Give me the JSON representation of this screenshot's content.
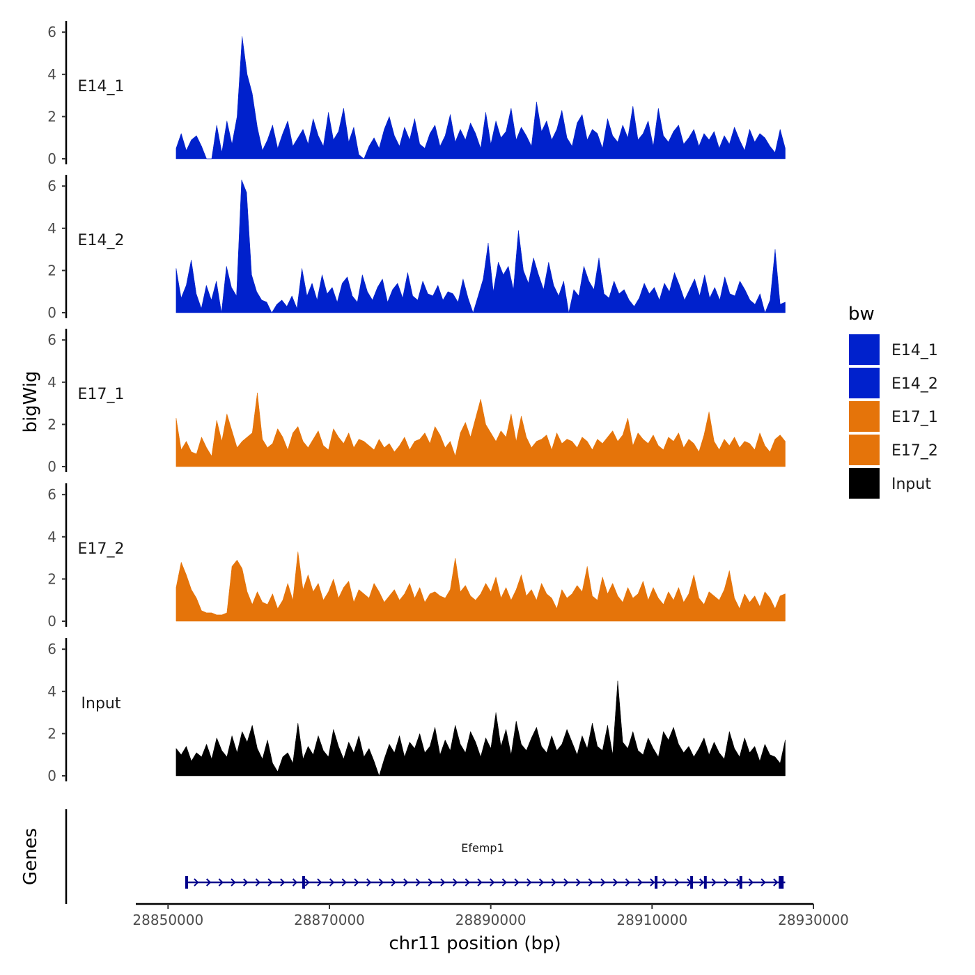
{
  "chart_data": {
    "type": "area",
    "title": "",
    "ylabel": "bigWig",
    "xlabel": "chr11 position (bp)",
    "xlim": [
      28846000,
      28930000
    ],
    "ylim": [
      0,
      6.6
    ],
    "xticks": [
      28850000,
      28870000,
      28890000,
      28910000,
      28930000
    ],
    "xtick_labels": [
      "28850000",
      "28870000",
      "28890000",
      "28910000",
      "28930000"
    ],
    "yticks": [
      0,
      2,
      4,
      6
    ],
    "ytick_labels": [
      "0",
      "2",
      "4",
      "6"
    ],
    "data_range": [
      28851000,
      28926500
    ],
    "series": [
      {
        "name": "E14_1",
        "color": "#0021CC",
        "values": [
          0.5,
          1.2,
          0.4,
          0.9,
          1.1,
          0.6,
          0.0,
          0.0,
          1.6,
          0.3,
          1.8,
          0.7,
          2.0,
          5.8,
          4.0,
          3.1,
          1.5,
          0.4,
          0.9,
          1.6,
          0.5,
          1.2,
          1.8,
          0.6,
          1.0,
          1.4,
          0.7,
          1.9,
          1.1,
          0.6,
          2.2,
          0.9,
          1.3,
          2.4,
          0.8,
          1.5,
          0.2,
          0.0,
          0.6,
          1.0,
          0.5,
          1.4,
          2.0,
          1.1,
          0.6,
          1.5,
          0.9,
          1.9,
          0.7,
          0.5,
          1.2,
          1.6,
          0.6,
          1.1,
          2.1,
          0.8,
          1.4,
          0.9,
          1.7,
          1.2,
          0.5,
          2.2,
          0.7,
          1.8,
          1.0,
          1.3,
          2.4,
          0.9,
          1.5,
          1.1,
          0.6,
          2.7,
          1.3,
          1.8,
          0.9,
          1.4,
          2.3,
          1.0,
          0.6,
          1.7,
          2.1,
          0.9,
          1.4,
          1.2,
          0.5,
          1.9,
          1.1,
          0.8,
          1.6,
          1.0,
          2.5,
          0.9,
          1.2,
          1.8,
          0.6,
          2.4,
          1.1,
          0.8,
          1.3,
          1.6,
          0.7,
          1.0,
          1.4,
          0.6,
          1.2,
          0.9,
          1.3,
          0.5,
          1.1,
          0.7,
          1.5,
          0.9,
          0.4,
          1.4,
          0.8,
          1.2,
          1.0,
          0.6,
          0.3,
          1.4,
          0.5
        ]
      },
      {
        "name": "E14_2",
        "color": "#0021CC",
        "values": [
          2.1,
          0.7,
          1.3,
          2.5,
          0.9,
          0.2,
          1.3,
          0.6,
          1.5,
          0.0,
          2.2,
          1.2,
          0.8,
          6.3,
          5.7,
          1.8,
          1.0,
          0.6,
          0.5,
          0.0,
          0.4,
          0.6,
          0.3,
          0.8,
          0.2,
          2.1,
          0.8,
          1.4,
          0.6,
          1.8,
          0.9,
          1.2,
          0.5,
          1.4,
          1.7,
          0.8,
          0.5,
          1.8,
          1.0,
          0.6,
          1.2,
          1.6,
          0.5,
          1.1,
          1.4,
          0.7,
          1.9,
          0.8,
          0.6,
          1.5,
          0.9,
          0.8,
          1.3,
          0.6,
          1.0,
          0.9,
          0.5,
          1.6,
          0.7,
          0.0,
          0.8,
          1.6,
          3.3,
          1.0,
          2.4,
          1.8,
          2.2,
          1.1,
          3.9,
          2.0,
          1.4,
          2.6,
          1.8,
          1.1,
          2.4,
          1.3,
          0.8,
          1.5,
          0.0,
          1.1,
          0.8,
          2.2,
          1.5,
          1.1,
          2.6,
          0.9,
          0.7,
          1.5,
          0.9,
          1.1,
          0.6,
          0.3,
          0.7,
          1.4,
          0.9,
          1.2,
          0.6,
          1.4,
          1.0,
          1.9,
          1.3,
          0.6,
          1.1,
          1.6,
          0.8,
          1.8,
          0.7,
          1.2,
          0.6,
          1.7,
          0.9,
          0.8,
          1.5,
          1.1,
          0.6,
          0.4,
          0.9,
          0.0,
          0.6,
          3.0,
          0.4,
          0.5
        ]
      },
      {
        "name": "E17_1",
        "color": "#E5740A",
        "values": [
          2.3,
          0.8,
          1.2,
          0.7,
          0.6,
          1.4,
          0.9,
          0.5,
          2.2,
          1.2,
          2.5,
          1.7,
          0.9,
          1.2,
          1.4,
          1.6,
          3.5,
          1.3,
          0.9,
          1.1,
          1.8,
          1.4,
          0.8,
          1.6,
          1.9,
          1.2,
          0.9,
          1.3,
          1.7,
          1.0,
          0.8,
          1.8,
          1.4,
          1.1,
          1.6,
          0.9,
          1.3,
          1.2,
          1.0,
          0.8,
          1.3,
          0.9,
          1.1,
          0.7,
          1.0,
          1.4,
          0.8,
          1.2,
          1.3,
          1.6,
          1.1,
          1.9,
          1.5,
          0.9,
          1.2,
          0.5,
          1.6,
          2.1,
          1.4,
          2.3,
          3.2,
          2.0,
          1.6,
          1.2,
          1.7,
          1.4,
          2.5,
          1.2,
          2.4,
          1.4,
          0.9,
          1.2,
          1.3,
          1.5,
          0.8,
          1.6,
          1.1,
          1.3,
          1.2,
          0.9,
          1.4,
          1.2,
          0.8,
          1.3,
          1.1,
          1.4,
          1.7,
          1.2,
          1.5,
          2.3,
          1.0,
          1.6,
          1.3,
          1.1,
          1.5,
          1.0,
          0.8,
          1.4,
          1.2,
          1.6,
          0.9,
          1.3,
          1.1,
          0.7,
          1.5,
          2.6,
          1.2,
          0.8,
          1.3,
          1.0,
          1.4,
          0.9,
          1.2,
          1.1,
          0.8,
          1.6,
          1.0,
          0.7,
          1.3,
          1.5,
          1.2
        ]
      },
      {
        "name": "E17_2",
        "color": "#E5740A",
        "values": [
          1.6,
          2.8,
          2.2,
          1.5,
          1.1,
          0.5,
          0.4,
          0.4,
          0.3,
          0.3,
          0.4,
          2.6,
          2.9,
          2.5,
          1.4,
          0.8,
          1.4,
          0.9,
          0.8,
          1.3,
          0.6,
          1.0,
          1.8,
          1.0,
          3.3,
          1.5,
          2.2,
          1.4,
          1.8,
          1.0,
          1.4,
          2.0,
          1.1,
          1.6,
          1.9,
          0.9,
          1.5,
          1.3,
          1.1,
          1.8,
          1.4,
          0.9,
          1.2,
          1.5,
          1.0,
          1.3,
          1.8,
          1.1,
          1.6,
          0.9,
          1.3,
          1.4,
          1.2,
          1.1,
          1.5,
          3.0,
          1.4,
          1.7,
          1.2,
          1.0,
          1.3,
          1.8,
          1.4,
          2.1,
          1.1,
          1.6,
          1.0,
          1.5,
          2.2,
          1.2,
          1.5,
          1.0,
          1.8,
          1.3,
          1.1,
          0.6,
          1.5,
          1.1,
          1.3,
          1.7,
          1.4,
          2.6,
          1.2,
          1.0,
          2.1,
          1.3,
          1.8,
          1.2,
          0.9,
          1.6,
          1.1,
          1.3,
          1.9,
          1.0,
          1.6,
          1.1,
          0.8,
          1.4,
          1.0,
          1.6,
          0.9,
          1.3,
          2.2,
          1.1,
          0.8,
          1.4,
          1.2,
          1.0,
          1.5,
          2.4,
          1.1,
          0.6,
          1.3,
          0.9,
          1.2,
          0.7,
          1.4,
          1.1,
          0.6,
          1.2,
          1.3
        ]
      },
      {
        "name": "Input",
        "color": "#000000",
        "values": [
          1.3,
          1.0,
          1.4,
          0.7,
          1.1,
          0.9,
          1.5,
          0.8,
          1.8,
          1.2,
          0.9,
          1.9,
          1.1,
          2.1,
          1.6,
          2.4,
          1.3,
          0.8,
          1.7,
          0.6,
          0.2,
          0.9,
          1.1,
          0.6,
          2.5,
          0.8,
          1.4,
          1.0,
          1.9,
          1.2,
          0.9,
          2.2,
          1.4,
          0.8,
          1.6,
          1.1,
          1.9,
          0.9,
          1.3,
          0.7,
          0.0,
          0.8,
          1.5,
          1.1,
          1.9,
          0.9,
          1.6,
          1.3,
          2.0,
          1.1,
          1.4,
          2.3,
          1.0,
          1.7,
          1.2,
          2.4,
          1.5,
          1.1,
          2.1,
          1.6,
          0.9,
          1.8,
          1.3,
          3.0,
          1.4,
          2.2,
          1.0,
          2.6,
          1.5,
          1.2,
          1.8,
          2.3,
          1.4,
          1.1,
          1.9,
          1.2,
          1.5,
          2.2,
          1.6,
          1.0,
          1.9,
          1.3,
          2.5,
          1.4,
          1.2,
          2.4,
          1.0,
          4.5,
          1.6,
          1.3,
          2.1,
          1.2,
          1.0,
          1.8,
          1.3,
          0.9,
          2.1,
          1.7,
          2.3,
          1.5,
          1.1,
          1.4,
          0.9,
          1.3,
          1.8,
          1.0,
          1.6,
          1.1,
          0.8,
          2.1,
          1.3,
          0.9,
          1.8,
          1.1,
          1.4,
          0.7,
          1.5,
          1.0,
          0.9,
          0.6,
          1.7
        ]
      }
    ],
    "legend": {
      "title": "bw",
      "position": "right",
      "entries": [
        {
          "label": "E14_1",
          "color": "#0021CC"
        },
        {
          "label": "E14_2",
          "color": "#0021CC"
        },
        {
          "label": "E17_1",
          "color": "#E5740A"
        },
        {
          "label": "E17_2",
          "color": "#E5740A"
        },
        {
          "label": "Input",
          "color": "#000000"
        }
      ]
    },
    "genes_track": {
      "ylabel": "Genes",
      "color": "#00008B",
      "genes": [
        {
          "name": "Efemp1",
          "start": 28852300,
          "end": 28926500,
          "strand": "+",
          "exons": [
            28852300,
            28866800,
            28910500,
            28914900,
            28916600,
            28921000,
            28926000
          ]
        }
      ]
    }
  }
}
